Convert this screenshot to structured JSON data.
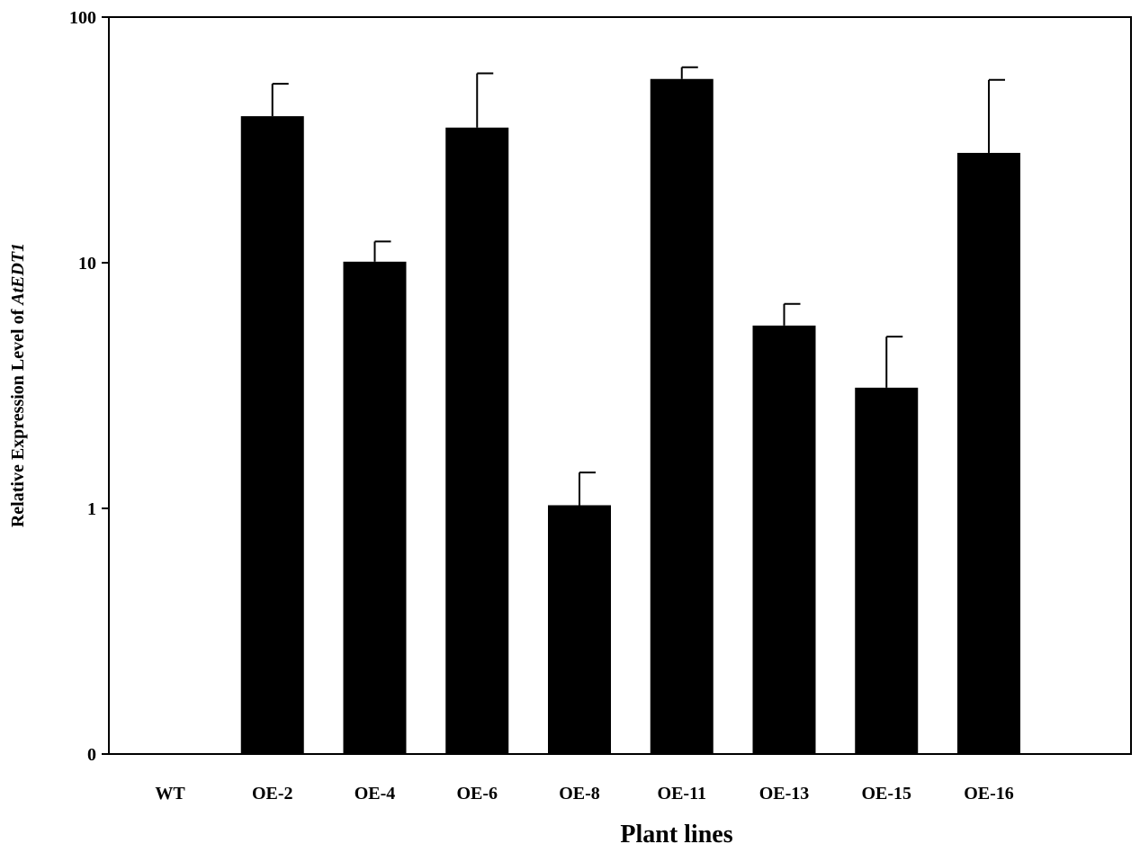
{
  "chart_data": {
    "type": "bar",
    "categories": [
      "WT",
      "OE-2",
      "OE-4",
      "OE-6",
      "OE-8",
      "OE-11",
      "OE-13",
      "OE-15",
      "OE-16"
    ],
    "series": [
      {
        "values": [
          0.1,
          39.5,
          10.1,
          35.5,
          1.03,
          56.0,
          5.55,
          3.1,
          28.0
        ],
        "error_upper": [
          null,
          53.5,
          12.2,
          59.0,
          1.4,
          62.5,
          6.8,
          5.0,
          55.5
        ]
      }
    ],
    "xlabel": "Plant lines",
    "ylabel": {
      "prefix": "Relative Expression Level of ",
      "gene": "AtEDT1"
    },
    "yscale": "log",
    "ylim": [
      0.1,
      100
    ],
    "yticks": [
      {
        "value": 0.1,
        "label": "0"
      },
      {
        "value": 1,
        "label": "1"
      },
      {
        "value": 10,
        "label": "10"
      },
      {
        "value": 100,
        "label": "100"
      }
    ],
    "grid": false,
    "bar_color": "#000000"
  }
}
